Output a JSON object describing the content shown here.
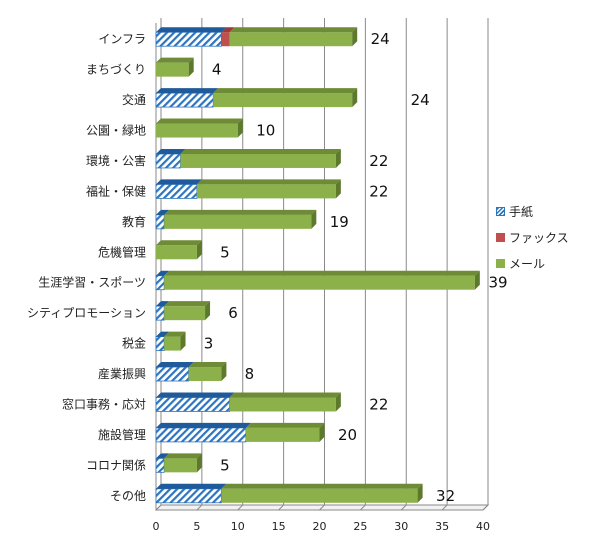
{
  "chart_data": {
    "type": "bar",
    "orientation": "horizontal",
    "stacked": true,
    "categories": [
      "インフラ",
      "まちづくり",
      "交通",
      "公園・緑地",
      "環境・公害",
      "福祉・保健",
      "教育",
      "危機管理",
      "生涯学習・スポーツ",
      "シティプロモーション",
      "税金",
      "産業振興",
      "窓口事務・応対",
      "施設管理",
      "コロナ関係",
      "その他"
    ],
    "series": [
      {
        "name": "手紙",
        "color": "#2e75c0",
        "pattern": "diagonal-hatch",
        "values": [
          8,
          0,
          7,
          0,
          3,
          5,
          1,
          0,
          1,
          1,
          1,
          4,
          9,
          11,
          1,
          8
        ]
      },
      {
        "name": "ファックス",
        "color": "#c0504d",
        "values": [
          1,
          0,
          0,
          0,
          0,
          0,
          0,
          0,
          0,
          0,
          0,
          0,
          0,
          0,
          0,
          0
        ]
      },
      {
        "name": "メール",
        "color": "#8db14a",
        "values": [
          15,
          4,
          17,
          10,
          19,
          17,
          18,
          5,
          38,
          5,
          2,
          4,
          13,
          9,
          4,
          24
        ]
      }
    ],
    "totals": [
      "24",
      "4",
      "24",
      "10",
      "22",
      "22",
      "19",
      "5",
      "39",
      "6",
      "3",
      "8",
      "22",
      "20",
      "5",
      "32"
    ],
    "xlim": [
      0,
      40
    ],
    "xticks": [
      "0",
      "5",
      "10",
      "15",
      "20",
      "25",
      "30",
      "35",
      "40"
    ],
    "grid": "vertical lines",
    "legend_position": "right",
    "style": "3d"
  }
}
